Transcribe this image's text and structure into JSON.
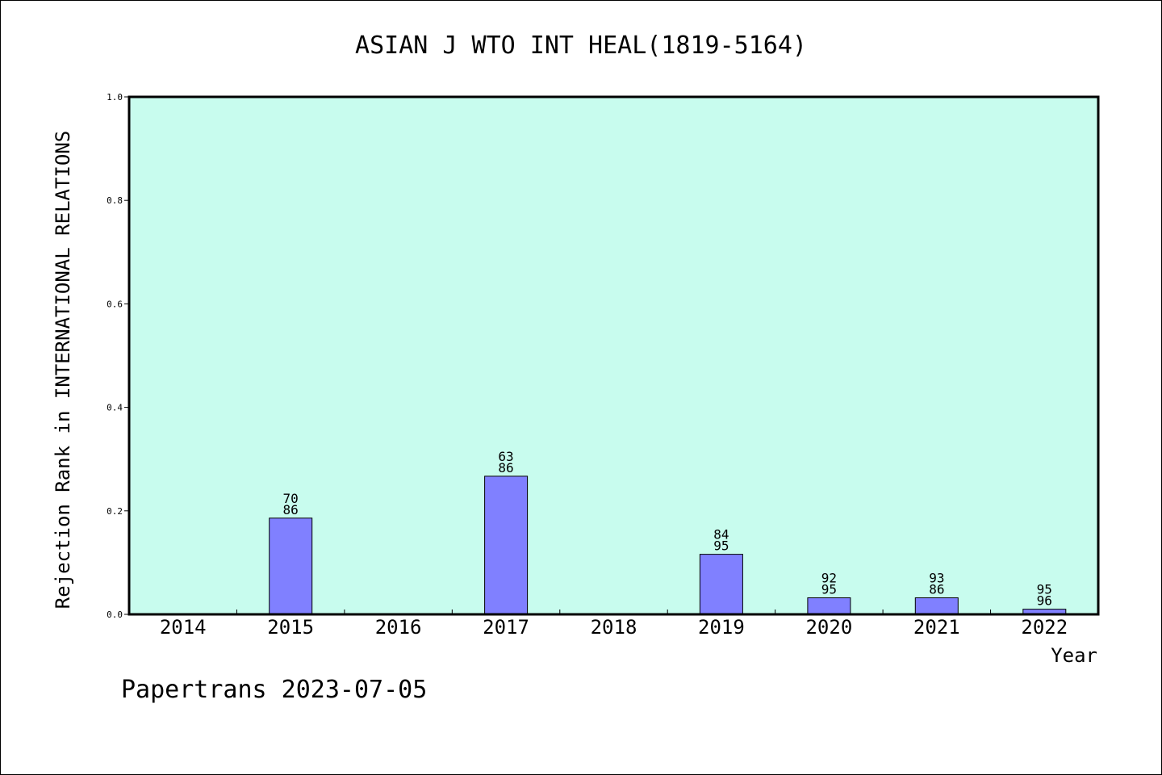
{
  "chart_data": {
    "type": "bar",
    "title": "ASIAN J WTO INT HEAL(1819-5164)",
    "xlabel": "Year",
    "ylabel": "Rejection Rank in INTERNATIONAL RELATIONS",
    "categories": [
      "2014",
      "2015",
      "2016",
      "2017",
      "2018",
      "2019",
      "2020",
      "2021",
      "2022"
    ],
    "values": [
      null,
      0.186,
      null,
      0.267,
      null,
      0.116,
      0.032,
      0.032,
      0.01
    ],
    "bar_labels_top": [
      "",
      "70",
      "",
      "63",
      "",
      "84",
      "92",
      "93",
      "95"
    ],
    "bar_labels_bottom": [
      "",
      "86",
      "",
      "86",
      "",
      "95",
      "95",
      "86",
      "96"
    ],
    "ylim": [
      0,
      1.0
    ],
    "yticks": [
      "0.0",
      "0.2",
      "0.4",
      "0.6",
      "0.8",
      "1.0"
    ],
    "grid": false,
    "plot_background": "#c8fcee",
    "bar_color": "#8080ff"
  },
  "footer": {
    "watermark": "Papertrans 2023-07-05"
  }
}
